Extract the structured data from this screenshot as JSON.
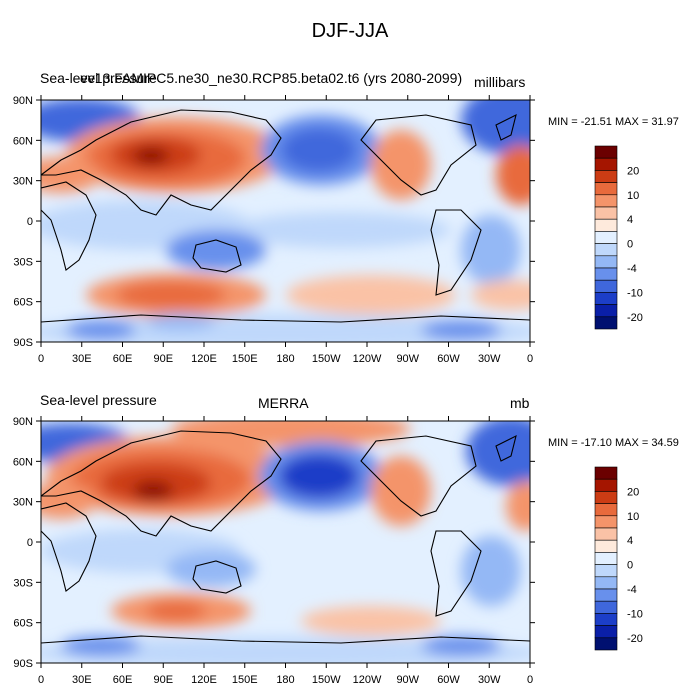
{
  "title": "DJF-JJA",
  "panels": [
    {
      "left_label": "Sea-level pressure",
      "center_label": "ev13.FAMIPC5.ne30_ne30.RCP85.beta02.t6 (yrs 2080-2099)",
      "right_label": "millibars",
      "min_max": "MIN = -21.51 MAX =  31.97"
    },
    {
      "left_label": "Sea-level pressure",
      "center_label": "MERRA",
      "right_label": "mb",
      "min_max": "MIN = -17.10 MAX =  34.59"
    }
  ],
  "lat_ticks": [
    "90N",
    "60N",
    "30N",
    "0",
    "30S",
    "60S",
    "90S"
  ],
  "lon_ticks": [
    "0",
    "30E",
    "60E",
    "90E",
    "120E",
    "150E",
    "180",
    "150W",
    "120W",
    "90W",
    "60W",
    "30W",
    "0"
  ],
  "colorbar": {
    "labels": [
      "20",
      "10",
      "4",
      "0",
      "-4",
      "-10",
      "-20"
    ],
    "colors": [
      "#6b0000",
      "#a51500",
      "#cc3c14",
      "#e86a3c",
      "#f4946a",
      "#fac2a6",
      "#feeadc",
      "#e3f0ff",
      "#bfd8fb",
      "#94b8f5",
      "#6890ec",
      "#3f67dc",
      "#1c3ec8",
      "#0a1fa8",
      "#001070"
    ]
  }
}
